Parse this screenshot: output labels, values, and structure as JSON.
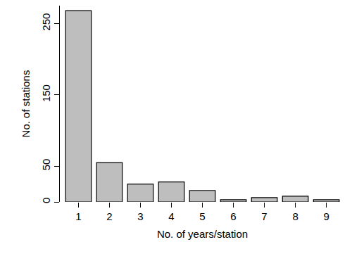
{
  "chart_data": {
    "type": "bar",
    "x_label": "No. of years/station",
    "y_label": "No. of stations",
    "categories": [
      "1",
      "2",
      "3",
      "4",
      "5",
      "6",
      "7",
      "8",
      "9"
    ],
    "values": [
      268,
      55,
      25,
      28,
      16,
      3,
      6,
      8,
      3
    ],
    "color": "#bebebe",
    "ylim": [
      0,
      275
    ],
    "yticks": [
      0,
      50,
      150,
      250
    ],
    "grid": false
  }
}
